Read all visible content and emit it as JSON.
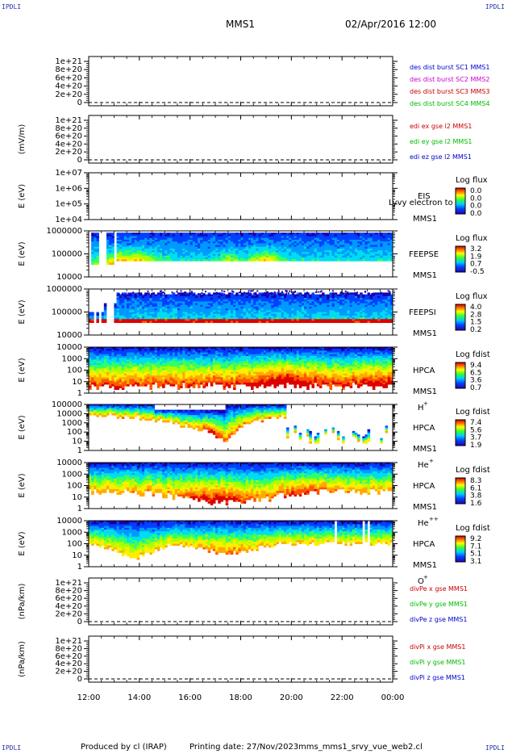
{
  "header": {
    "corner_tl": "IPDLI",
    "corner_tr": "IPDLI",
    "corner_bl": "IPDLI",
    "corner_br": "IPDLI",
    "mission": "MMS1",
    "datetime": "02/Apr/2016 12:00"
  },
  "footer": {
    "produced_by": "Produced by cl (IRAP)",
    "printing_date": "Printing date: 27/Nov/2023",
    "script_name": "mms_mms1_srvy_vue_web2.cl"
  },
  "chart_data": {
    "type": "multi-panel",
    "x_tick_labels": [
      "12:00",
      "14:00",
      "16:00",
      "18:00",
      "20:00",
      "22:00",
      "00:00"
    ],
    "panels": [
      {
        "id": "des",
        "type": "line",
        "ylabel": "",
        "yticks": [
          "1e+21",
          "8e+20",
          "6e+20",
          "4e+20",
          "2e+20",
          "0"
        ],
        "legend": [
          {
            "text": "des dist burst SC1 MMS1",
            "color": "#0000cc"
          },
          {
            "text": "des dist burst SC2 MMS2",
            "color": "#cc00cc"
          },
          {
            "text": "des dist burst SC3 MMS3",
            "color": "#cc0000"
          },
          {
            "text": "des dist burst SC4 MMS4",
            "color": "#00bb00"
          }
        ]
      },
      {
        "id": "edi",
        "type": "line",
        "ylabel": "(mV/m)",
        "yticks": [
          "1e+21",
          "8e+20",
          "6e+20",
          "4e+20",
          "2e+20",
          "0"
        ],
        "legend": [
          {
            "text": "edi ex gse l2 MMS1",
            "color": "#cc0000"
          },
          {
            "text": "edi ey gse l2 MMS1",
            "color": "#00bb00"
          },
          {
            "text": "edi ez gse l2 MMS1",
            "color": "#0000cc"
          }
        ]
      },
      {
        "id": "eis",
        "type": "heatmap",
        "ylabel": "E (eV)",
        "yticks": [
          "1e+07",
          "1e+06",
          "1e+05",
          "1e+04"
        ],
        "labels": [
          "EIS",
          "MMS1"
        ],
        "overlay": "Lyvy electron to",
        "colorbar": {
          "title": "Log flux",
          "ticks": [
            "0.0",
            "0.0",
            "0.0",
            "0.0"
          ]
        }
      },
      {
        "id": "feepse",
        "type": "heatmap",
        "ylabel": "E (eV)",
        "yticks": [
          "1000000",
          "100000",
          "10000"
        ],
        "labels": [
          "FEEPSE",
          "MMS1"
        ],
        "colorbar": {
          "title": "Log flux",
          "ticks": [
            "3.2",
            "1.9",
            "0.7",
            "-0.5"
          ]
        }
      },
      {
        "id": "feepsi",
        "type": "heatmap",
        "ylabel": "E (eV)",
        "yticks": [
          "1000000",
          "100000",
          "10000"
        ],
        "labels": [
          "FEEPSI",
          "MMS1"
        ],
        "colorbar": {
          "title": "Log flux",
          "ticks": [
            "4.0",
            "2.8",
            "1.5",
            "0.2"
          ]
        }
      },
      {
        "id": "hpca_h",
        "type": "heatmap",
        "ylabel": "E (eV)",
        "yticks": [
          "10000",
          "1000",
          "100",
          "10",
          "1"
        ],
        "labels": [
          "HPCA",
          "MMS1"
        ],
        "species": "H",
        "species_sup": "+",
        "colorbar": {
          "title": "Log fdist",
          "ticks": [
            "9.4",
            "6.5",
            "3.6",
            "0.7"
          ]
        }
      },
      {
        "id": "hpca_he",
        "type": "heatmap",
        "ylabel": "E (eV)",
        "yticks": [
          "100000",
          "10000",
          "1000",
          "100",
          "10",
          "1"
        ],
        "labels": [
          "HPCA",
          "MMS1"
        ],
        "species": "He",
        "species_sup": "+",
        "colorbar": {
          "title": "Log fdist",
          "ticks": [
            "7.4",
            "5.6",
            "3.7",
            "1.9"
          ]
        }
      },
      {
        "id": "hpca_hepp",
        "type": "heatmap",
        "ylabel": "E (eV)",
        "yticks": [
          "10000",
          "1000",
          "100",
          "10",
          "1"
        ],
        "labels": [
          "HPCA",
          "MMS1"
        ],
        "species": "He",
        "species_sup": "++",
        "colorbar": {
          "title": "Log fdist",
          "ticks": [
            "8.3",
            "6.1",
            "3.8",
            "1.6"
          ]
        }
      },
      {
        "id": "hpca_o",
        "type": "heatmap",
        "ylabel": "E (eV)",
        "yticks": [
          "10000",
          "1000",
          "100",
          "10",
          "1"
        ],
        "labels": [
          "HPCA",
          "MMS1"
        ],
        "species": "O",
        "species_sup": "+",
        "colorbar": {
          "title": "Log fdist",
          "ticks": [
            "9.2",
            "7.1",
            "5.1",
            "3.1"
          ]
        }
      },
      {
        "id": "divpe",
        "type": "line",
        "ylabel": "(nPa/km)",
        "yticks": [
          "1e+21",
          "8e+20",
          "6e+20",
          "4e+20",
          "2e+20",
          "0"
        ],
        "legend": [
          {
            "text": "divPe x gse MMS1",
            "color": "#cc0000"
          },
          {
            "text": "divPe y gse MMS1",
            "color": "#00bb00"
          },
          {
            "text": "divPe z gse MMS1",
            "color": "#0000cc"
          }
        ]
      },
      {
        "id": "divpi",
        "type": "line",
        "ylabel": "(nPa/km)",
        "yticks": [
          "1e+21",
          "8e+20",
          "6e+20",
          "4e+20",
          "2e+20",
          "0"
        ],
        "legend": [
          {
            "text": "divPi x gse MMS1",
            "color": "#cc0000"
          },
          {
            "text": "divPi y gse MMS1",
            "color": "#00bb00"
          },
          {
            "text": "divPi z gse MMS1",
            "color": "#0000cc"
          }
        ]
      }
    ]
  }
}
